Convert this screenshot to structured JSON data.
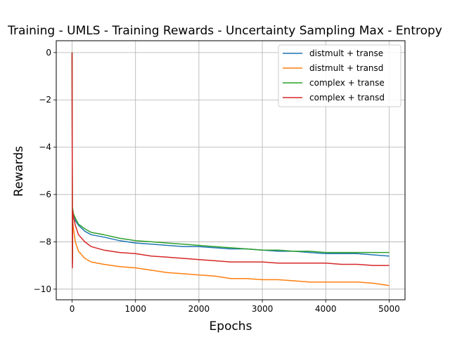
{
  "chart_data": {
    "type": "line",
    "title": "Training - UMLS - Training Rewards - Uncertainty Sampling Max - Entropy",
    "xlabel": "Epochs",
    "ylabel": "Rewards",
    "xlim": [
      -250,
      5250
    ],
    "ylim": [
      -10.45,
      0.5
    ],
    "xticks": [
      0,
      1000,
      2000,
      3000,
      4000,
      5000
    ],
    "yticks": [
      0,
      -2,
      -4,
      -6,
      -8,
      -10
    ],
    "xtick_labels": [
      "0",
      "1000",
      "2000",
      "3000",
      "4000",
      "5000"
    ],
    "ytick_labels": [
      "0",
      "−2",
      "−4",
      "−6",
      "−8",
      "−10"
    ],
    "grid": true,
    "legend_position": "top-right",
    "x": [
      0,
      5,
      10,
      20,
      50,
      100,
      200,
      300,
      500,
      750,
      1000,
      1250,
      1500,
      1750,
      2000,
      2250,
      2500,
      2750,
      3000,
      3250,
      3500,
      3750,
      4000,
      4250,
      4500,
      4750,
      5000
    ],
    "series": [
      {
        "name": "distmult + transe",
        "color": "#1f77b4",
        "values": [
          0.0,
          -8.9,
          -6.8,
          -6.9,
          -7.1,
          -7.3,
          -7.55,
          -7.7,
          -7.8,
          -7.95,
          -8.05,
          -8.1,
          -8.15,
          -8.2,
          -8.2,
          -8.25,
          -8.3,
          -8.3,
          -8.35,
          -8.4,
          -8.4,
          -8.45,
          -8.5,
          -8.5,
          -8.5,
          -8.55,
          -8.6
        ]
      },
      {
        "name": "distmult + transd",
        "color": "#ff7f0e",
        "values": [
          0.0,
          -8.8,
          -7.1,
          -7.4,
          -8.0,
          -8.4,
          -8.7,
          -8.85,
          -8.95,
          -9.05,
          -9.1,
          -9.2,
          -9.3,
          -9.35,
          -9.4,
          -9.45,
          -9.55,
          -9.55,
          -9.6,
          -9.6,
          -9.65,
          -9.7,
          -9.7,
          -9.7,
          -9.7,
          -9.75,
          -9.85
        ]
      },
      {
        "name": "complex + transe",
        "color": "#2ca02c",
        "values": [
          0.0,
          -8.7,
          -6.6,
          -6.8,
          -7.0,
          -7.25,
          -7.45,
          -7.6,
          -7.7,
          -7.85,
          -7.95,
          -8.0,
          -8.05,
          -8.1,
          -8.15,
          -8.2,
          -8.25,
          -8.3,
          -8.35,
          -8.35,
          -8.4,
          -8.4,
          -8.45,
          -8.45,
          -8.45,
          -8.45,
          -8.45
        ]
      },
      {
        "name": "complex + transd",
        "color": "#d62728",
        "values": [
          0.0,
          -9.1,
          -6.7,
          -6.9,
          -7.3,
          -7.7,
          -8.0,
          -8.2,
          -8.35,
          -8.45,
          -8.5,
          -8.6,
          -8.65,
          -8.7,
          -8.75,
          -8.8,
          -8.85,
          -8.85,
          -8.85,
          -8.9,
          -8.9,
          -8.9,
          -8.9,
          -8.95,
          -8.95,
          -9.0,
          -9.0
        ]
      }
    ]
  }
}
